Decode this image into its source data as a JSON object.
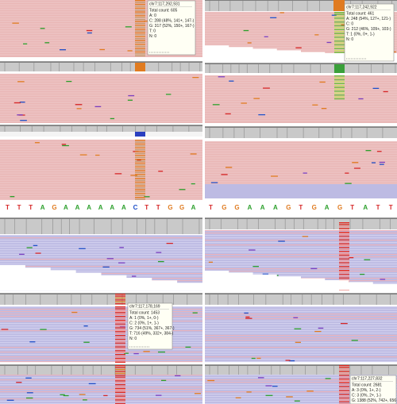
{
  "tooltips": [
    {
      "locus": "chr7:117,292,931",
      "lines": [
        "Total count: 605",
        "A: 0",
        "C: 288 (48%, 141+, 147-)",
        "G: 317 (52%, 150+, 167-)",
        "T: 0",
        "N: 0"
      ]
    },
    {
      "locus": "chr7:117,242,922",
      "lines": [
        "Total count: 461",
        "A: 248 (54%, 127+, 121-)",
        "C: 0",
        "G: 212 (46%, 109+, 103-)",
        "T: 1 (0%, 0+, 1-)",
        "N: 0"
      ]
    },
    {
      "locus": "chr7:117,178,169",
      "lines": [
        "Total count: 1453",
        "A: 1 (0%, 1+, 0-)",
        "C: 2 (0%, 1+, 1-)",
        "G: 734 (51%, 367+, 367-)",
        "T: 716 (49%, 332+, 384-)",
        "N: 0"
      ]
    },
    {
      "locus": "chr7:117,227,832",
      "lines": [
        "Total count: 2681",
        "A: 3 (0%, 1+, 2-)",
        "C: 3 (0%, 2+, 1-)",
        "G: 1388 (52%, 742+, 656"
      ]
    }
  ],
  "sequences": [
    [
      {
        "base": "T",
        "color": "#d62728"
      },
      {
        "base": "T",
        "color": "#d62728"
      },
      {
        "base": "T",
        "color": "#d62728"
      },
      {
        "base": "A",
        "color": "#2ca02c"
      },
      {
        "base": "G",
        "color": "#e07b20"
      },
      {
        "base": "A",
        "color": "#2ca02c"
      },
      {
        "base": "A",
        "color": "#2ca02c"
      },
      {
        "base": "A",
        "color": "#2ca02c"
      },
      {
        "base": "A",
        "color": "#2ca02c"
      },
      {
        "base": "A",
        "color": "#2ca02c"
      },
      {
        "base": "A",
        "color": "#2ca02c"
      },
      {
        "base": "C",
        "color": "#1f4fc8"
      },
      {
        "base": "T",
        "color": "#d62728"
      },
      {
        "base": "T",
        "color": "#d62728"
      },
      {
        "base": "G",
        "color": "#e07b20"
      },
      {
        "base": "G",
        "color": "#e07b20"
      },
      {
        "base": "A",
        "color": "#2ca02c"
      }
    ],
    [
      {
        "base": "T",
        "color": "#d62728"
      },
      {
        "base": "G",
        "color": "#e07b20"
      },
      {
        "base": "G",
        "color": "#e07b20"
      },
      {
        "base": "A",
        "color": "#2ca02c"
      },
      {
        "base": "A",
        "color": "#2ca02c"
      },
      {
        "base": "A",
        "color": "#2ca02c"
      },
      {
        "base": "G",
        "color": "#e07b20"
      },
      {
        "base": "T",
        "color": "#d62728"
      },
      {
        "base": "G",
        "color": "#e07b20"
      },
      {
        "base": "A",
        "color": "#2ca02c"
      },
      {
        "base": "G",
        "color": "#e07b20"
      },
      {
        "base": "T",
        "color": "#d62728"
      },
      {
        "base": "A",
        "color": "#2ca02c"
      },
      {
        "base": "T",
        "color": "#d62728"
      },
      {
        "base": "T",
        "color": "#d62728"
      }
    ]
  ]
}
